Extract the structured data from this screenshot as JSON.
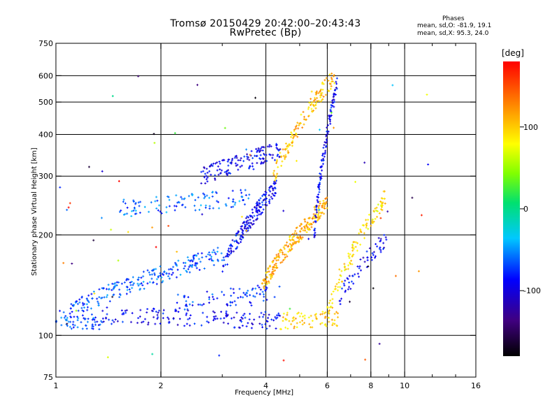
{
  "title_line1": "Tromsø 20150429 20:42:00–20:43:43",
  "title_line2": "RwPretec (Bp)",
  "phases": {
    "heading": "Phases",
    "line1": "mean, sd,O: -81.9, 19.1",
    "line2": "mean, sd,X:  95.3, 24.0"
  },
  "colorbar": {
    "unit_label": "[deg]",
    "ticks": [
      {
        "value": 100,
        "label": "100"
      },
      {
        "value": 0,
        "label": "0"
      },
      {
        "value": -100,
        "label": "-100"
      }
    ],
    "range": [
      -180,
      180
    ]
  },
  "chart_data": {
    "type": "scatter",
    "title": "Tromsø 20150429 20:42:00–20:43:43",
    "subtitle": "RwPretec (Bp)",
    "xlabel": "Frequency [MHz]",
    "ylabel": "Stationary phase Virtual Height [km]",
    "x_scale": "log",
    "y_scale": "log",
    "xlim": [
      1,
      16
    ],
    "ylim": [
      75,
      750
    ],
    "x_ticks": [
      {
        "value": 1,
        "label": "1"
      },
      {
        "value": 2,
        "label": "2"
      },
      {
        "value": 4,
        "label": "4"
      },
      {
        "value": 6,
        "label": "6"
      },
      {
        "value": 8,
        "label": "8"
      },
      {
        "value": 10,
        "label": "10"
      },
      {
        "value": 16,
        "label": "16"
      }
    ],
    "x_minor_ticks": [
      3,
      5,
      7,
      9,
      12,
      14
    ],
    "x_gridlines": [
      2,
      4,
      6,
      8,
      10
    ],
    "y_ticks": [
      {
        "value": 750,
        "label": "750"
      },
      {
        "value": 600,
        "label": "600"
      },
      {
        "value": 500,
        "label": "500"
      },
      {
        "value": 400,
        "label": "400"
      },
      {
        "value": 300,
        "label": "300"
      },
      {
        "value": 200,
        "label": "200"
      },
      {
        "value": 100,
        "label": "100"
      },
      {
        "value": 75,
        "label": "75"
      }
    ],
    "y_gridlines": [
      600,
      500,
      400,
      300,
      200,
      100
    ],
    "grid": true,
    "color_by": "phase [deg]",
    "traces": [
      {
        "x_range": [
          1.0,
          1.35
        ],
        "height_start": 113,
        "height_end": 108,
        "phase": -70,
        "count": 60
      },
      {
        "x_range": [
          1.35,
          4.4
        ],
        "height_start": 115,
        "height_end": 111,
        "phase": -92,
        "count": 150
      },
      {
        "x_range": [
          4.4,
          6.6
        ],
        "height_start": 111,
        "height_end": 113,
        "phase": 100,
        "count": 70
      },
      {
        "x_range": [
          1.1,
          3.0
        ],
        "height_start": 120,
        "height_end": 175,
        "phase": -65,
        "count": 220
      },
      {
        "x_range": [
          1.5,
          3.6
        ],
        "height_start": 240,
        "height_end": 260,
        "phase": -60,
        "count": 110
      },
      {
        "x_range": [
          2.2,
          4.3
        ],
        "height_start": 125,
        "height_end": 135,
        "phase": -75,
        "count": 80
      },
      {
        "x_range": [
          2.6,
          4.4
        ],
        "height_start": 300,
        "height_end": 360,
        "phase": -95,
        "count": 140
      },
      {
        "x_range": [
          3.0,
          4.3
        ],
        "height_start": 160,
        "height_end": 280,
        "phase": -90,
        "count": 180
      },
      {
        "x_range": [
          3.9,
          6.0
        ],
        "height_start": 140,
        "height_end": 250,
        "phase": 110,
        "count": 220
      },
      {
        "x_range": [
          4.2,
          6.3
        ],
        "height_start": 300,
        "height_end": 600,
        "phase": 105,
        "count": 140
      },
      {
        "x_range": [
          5.5,
          6.4
        ],
        "height_start": 200,
        "height_end": 560,
        "phase": -90,
        "count": 120
      },
      {
        "x_range": [
          6.0,
          8.8
        ],
        "height_start": 115,
        "height_end": 260,
        "phase": 90,
        "count": 110
      },
      {
        "x_range": [
          6.5,
          9.0
        ],
        "height_start": 130,
        "height_end": 200,
        "phase": -95,
        "count": 60
      },
      {
        "x_range": [
          1.0,
          12.0
        ],
        "height_start": 80,
        "height_end": 650,
        "phase": 0,
        "count": 70
      }
    ]
  }
}
